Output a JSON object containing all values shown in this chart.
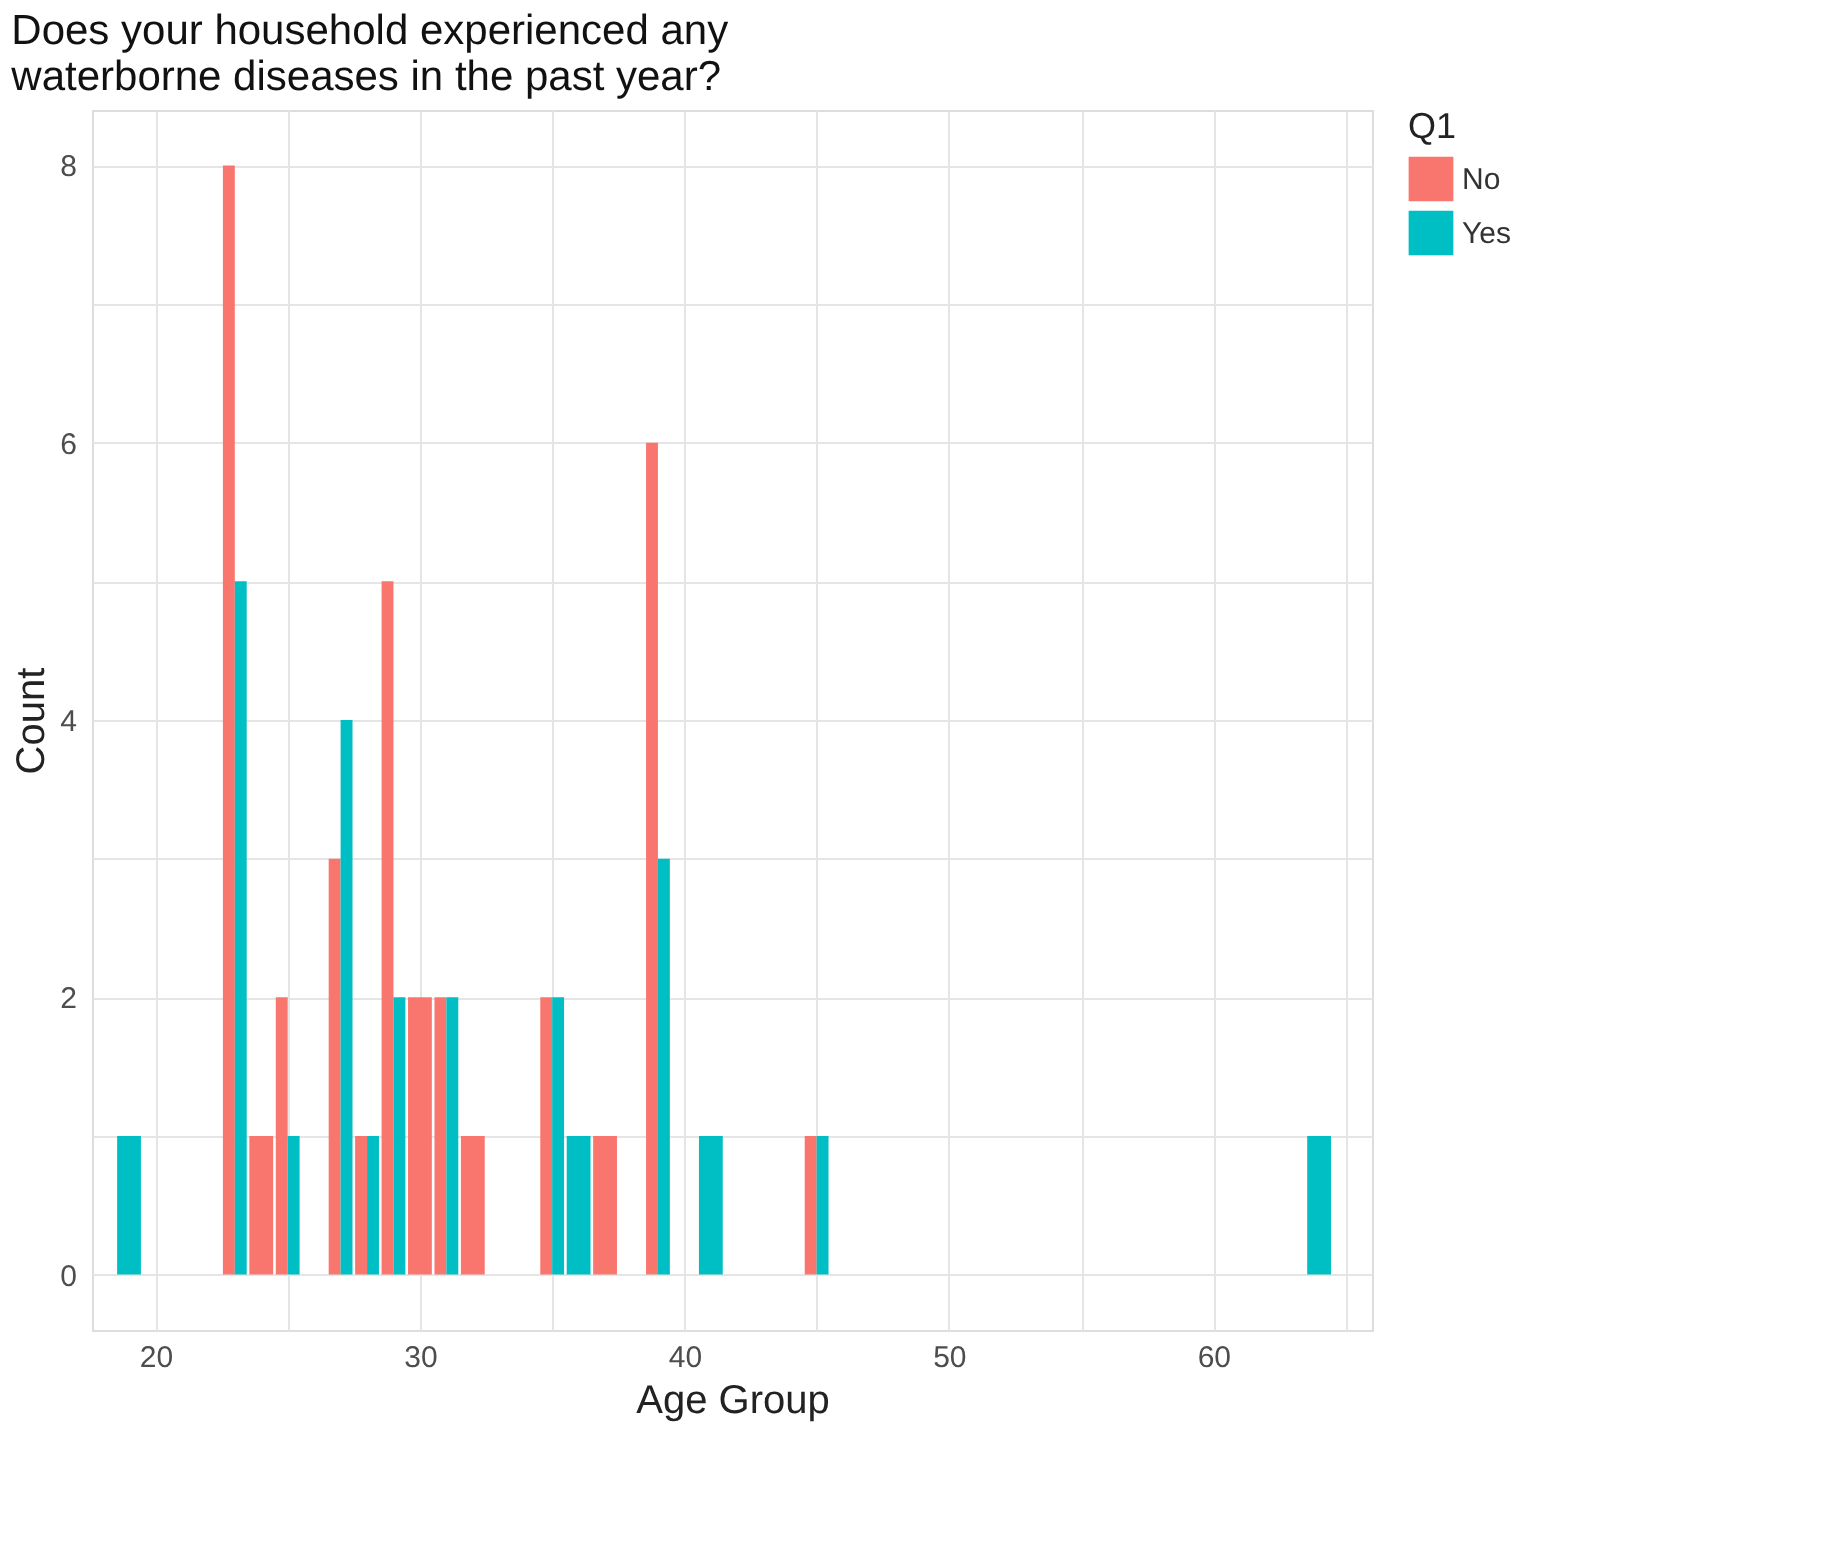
{
  "chart_data": {
    "type": "bar",
    "title": "Does your household experienced any waterborne diseases in the past year?",
    "xlabel": "Age Group",
    "ylabel": "Count",
    "legend_title": "Q1",
    "legend": "right",
    "grid": true,
    "x": [
      19,
      23,
      24,
      25,
      27,
      28,
      29,
      30,
      31,
      32,
      35,
      36,
      37,
      39,
      41,
      45,
      64
    ],
    "series": [
      {
        "name": "No",
        "color": "#f8766d",
        "values": [
          null,
          8,
          1,
          2,
          3,
          1,
          5,
          2,
          2,
          1,
          2,
          null,
          1,
          6,
          null,
          1,
          null
        ]
      },
      {
        "name": "Yes",
        "color": "#00bfc4",
        "values": [
          1,
          5,
          null,
          1,
          4,
          1,
          2,
          null,
          2,
          null,
          2,
          1,
          null,
          3,
          1,
          1,
          1
        ]
      }
    ],
    "xlim": [
      17.6,
      66.0
    ],
    "ylim": [
      -0.4,
      8.4
    ],
    "xticks": [
      20,
      {
        "value": 25,
        "label": null
      },
      30,
      {
        "value": 35,
        "label": null
      },
      40,
      {
        "value": 45,
        "label": null
      },
      50,
      {
        "value": 55,
        "label": null
      },
      60,
      {
        "value": 65,
        "label": null
      }
    ],
    "yticks": [
      0,
      {
        "value": 1,
        "label": null
      },
      2,
      {
        "value": 3,
        "label": null
      },
      4,
      {
        "value": 5,
        "label": null
      },
      6,
      {
        "value": 7,
        "label": null
      },
      8
    ]
  }
}
